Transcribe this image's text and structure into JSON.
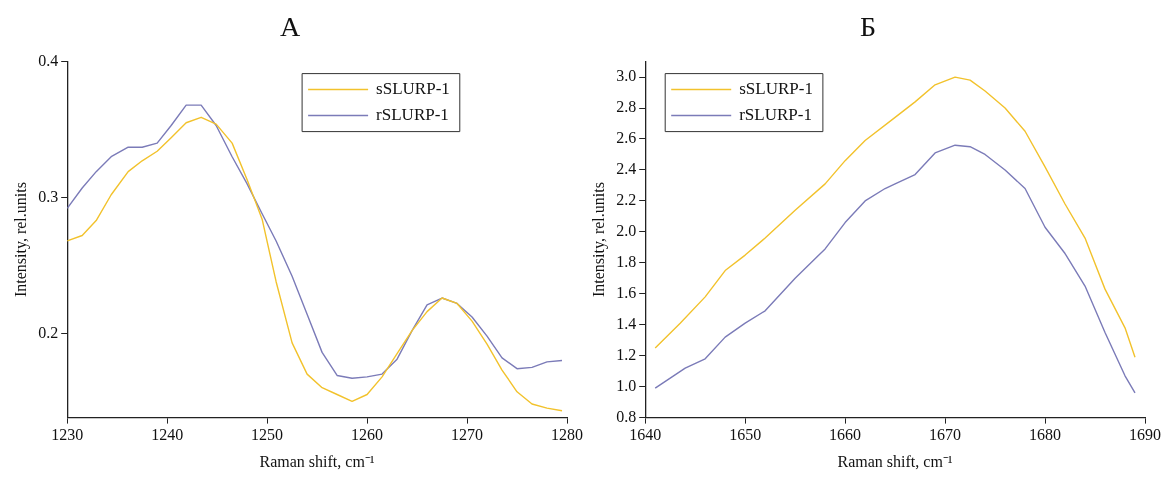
{
  "chart_data": [
    {
      "type": "line",
      "title": "А",
      "xlabel": "Raman shift, cm⁻¹",
      "ylabel": "Intensity, rel.units",
      "xlim": [
        1230,
        1280
      ],
      "xticks": [
        1230,
        1240,
        1250,
        1260,
        1270,
        1280
      ],
      "ylim": [
        0.138,
        0.4
      ],
      "yticks": [
        0.2,
        0.3,
        0.4
      ],
      "legend": "top right",
      "grid": false,
      "marker": "none",
      "line_style": "solid",
      "x": [
        1230,
        1231.5,
        1232.9,
        1234.4,
        1236.1,
        1237.5,
        1239.0,
        1240.4,
        1241.9,
        1243.4,
        1244.9,
        1246.5,
        1248.0,
        1249.5,
        1250.9,
        1252.5,
        1254.0,
        1255.5,
        1257.0,
        1258.5,
        1260.0,
        1261.5,
        1263.0,
        1264.5,
        1266.0,
        1267.5,
        1269.0,
        1270.5,
        1272.0,
        1273.5,
        1275.0,
        1276.5,
        1278.0,
        1279.5
      ],
      "series": [
        {
          "name": "sSLURP-1",
          "color": "#f2c22c",
          "values": [
            0.268,
            0.272,
            0.283,
            0.302,
            0.319,
            0.327,
            0.334,
            0.344,
            0.355,
            0.359,
            0.354,
            0.34,
            0.313,
            0.284,
            0.238,
            0.193,
            0.17,
            0.16,
            0.155,
            0.15,
            0.155,
            0.168,
            0.185,
            0.202,
            0.216,
            0.226,
            0.222,
            0.209,
            0.192,
            0.173,
            0.157,
            0.148,
            0.145,
            0.143
          ]
        },
        {
          "name": "rSLURP-1",
          "color": "#7b7bb8",
          "values": [
            0.292,
            0.307,
            0.319,
            0.33,
            0.337,
            0.337,
            0.34,
            0.353,
            0.368,
            0.368,
            0.353,
            0.33,
            0.31,
            0.288,
            0.268,
            0.242,
            0.214,
            0.186,
            0.169,
            0.167,
            0.168,
            0.17,
            0.181,
            0.202,
            0.221,
            0.226,
            0.222,
            0.212,
            0.198,
            0.182,
            0.174,
            0.175,
            0.179,
            0.18
          ]
        }
      ]
    },
    {
      "type": "line",
      "title": "Б",
      "xlabel": "Raman shift, cm⁻¹",
      "ylabel": "Intensity, rel.units",
      "xlim": [
        1640,
        1690
      ],
      "xticks": [
        1640,
        1650,
        1660,
        1670,
        1680,
        1690
      ],
      "ylim": [
        0.8,
        3.1
      ],
      "yticks": [
        0.8,
        {
          "value": 1,
          "label": "1.0"
        },
        1.2,
        1.4,
        1.6,
        1.8,
        {
          "value": 2,
          "label": "2.0"
        },
        2.2,
        2.4,
        2.6,
        2.8,
        {
          "value": 3,
          "label": "3.0"
        }
      ],
      "legend": "top left",
      "grid": false,
      "marker": "none",
      "line_style": "solid",
      "series": [
        {
          "name": "sSLURP-1",
          "color": "#f2c22c",
          "x": [
            1641,
            1643.5,
            1646,
            1648,
            1650,
            1652,
            1655,
            1658,
            1660,
            1662,
            1665,
            1667,
            1669,
            1671,
            1672.5,
            1674,
            1676,
            1678,
            1680,
            1682,
            1684,
            1686,
            1688,
            1689
          ],
          "values": [
            1.25,
            1.41,
            1.58,
            1.75,
            1.85,
            1.96,
            2.14,
            2.31,
            2.46,
            2.59,
            2.74,
            2.84,
            2.95,
            3.0,
            2.98,
            2.91,
            2.8,
            2.65,
            2.42,
            2.18,
            1.96,
            1.63,
            1.38,
            1.19
          ]
        },
        {
          "name": "rSLURP-1",
          "color": "#7b7bb8",
          "x": [
            1641,
            1644,
            1646,
            1648,
            1650,
            1652,
            1655,
            1658,
            1660,
            1662,
            1664,
            1665,
            1667,
            1669,
            1671,
            1672.5,
            1674,
            1676,
            1678,
            1680,
            1682,
            1684,
            1686,
            1688,
            1689
          ],
          "values": [
            0.99,
            1.12,
            1.18,
            1.32,
            1.41,
            1.49,
            1.7,
            1.89,
            2.06,
            2.2,
            2.28,
            2.31,
            2.37,
            2.51,
            2.56,
            2.55,
            2.5,
            2.4,
            2.28,
            2.03,
            1.86,
            1.65,
            1.35,
            1.07,
            0.96
          ]
        }
      ]
    }
  ]
}
